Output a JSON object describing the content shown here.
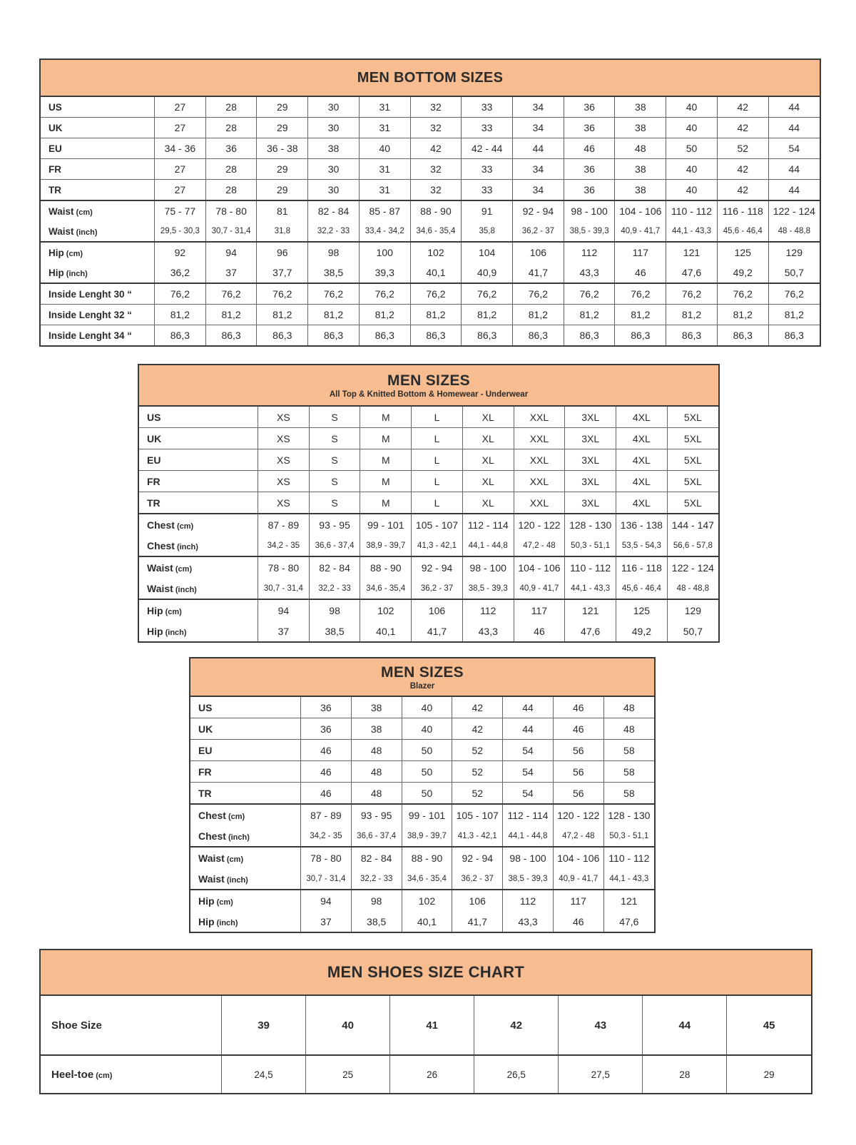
{
  "colors": {
    "header_bg": "#F7BD90",
    "line": "#666666",
    "line_dark": "#3a3a3a",
    "text": "#2b2b2b"
  },
  "tables": {
    "men_bottom_sizes": {
      "title": "MEN BOTTOM SIZES",
      "rows": [
        {
          "label": "US",
          "border": "normal",
          "values": [
            "27",
            "28",
            "29",
            "30",
            "31",
            "32",
            "33",
            "34",
            "36",
            "38",
            "40",
            "42",
            "44"
          ]
        },
        {
          "label": "UK",
          "border": "normal",
          "values": [
            "27",
            "28",
            "29",
            "30",
            "31",
            "32",
            "33",
            "34",
            "36",
            "38",
            "40",
            "42",
            "44"
          ]
        },
        {
          "label": "EU",
          "border": "normal",
          "values": [
            "34 - 36",
            "36",
            "36 - 38",
            "38",
            "40",
            "42",
            "42 - 44",
            "44",
            "46",
            "48",
            "50",
            "52",
            "54"
          ]
        },
        {
          "label": "FR",
          "border": "normal",
          "values": [
            "27",
            "28",
            "29",
            "30",
            "31",
            "32",
            "33",
            "34",
            "36",
            "38",
            "40",
            "42",
            "44"
          ]
        },
        {
          "label": "TR",
          "border": "normal",
          "values": [
            "27",
            "28",
            "29",
            "30",
            "31",
            "32",
            "33",
            "34",
            "36",
            "38",
            "40",
            "42",
            "44"
          ]
        },
        {
          "label": "Waist",
          "unit": "(cm)",
          "border": "group",
          "values": [
            "75 - 77",
            "78 - 80",
            "81",
            "82 - 84",
            "85 - 87",
            "88 - 90",
            "91",
            "92 - 94",
            "98 - 100",
            "104 - 106",
            "110 - 112",
            "116 - 118",
            "122 - 124"
          ]
        },
        {
          "label": "Waist",
          "unit": "(inch)",
          "border": "joined",
          "style": "small",
          "values": [
            "29,5 - 30,3",
            "30,7 - 31,4",
            "31,8",
            "32,2 - 33",
            "33,4 - 34,2",
            "34,6 - 35,4",
            "35,8",
            "36,2 - 37",
            "38,5 - 39,3",
            "40,9 - 41,7",
            "44,1 - 43,3",
            "45,6 - 46,4",
            "48 - 48,8"
          ]
        },
        {
          "label": "Hip",
          "unit": "(cm)",
          "border": "group",
          "values": [
            "92",
            "94",
            "96",
            "98",
            "100",
            "102",
            "104",
            "106",
            "112",
            "117",
            "121",
            "125",
            "129"
          ]
        },
        {
          "label": "Hip",
          "unit": "(inch)",
          "border": "joined",
          "values": [
            "36,2",
            "37",
            "37,7",
            "38,5",
            "39,3",
            "40,1",
            "40,9",
            "41,7",
            "43,3",
            "46",
            "47,6",
            "49,2",
            "50,7"
          ]
        },
        {
          "label": "Inside Lenght 30 “",
          "border": "group",
          "values": [
            "76,2",
            "76,2",
            "76,2",
            "76,2",
            "76,2",
            "76,2",
            "76,2",
            "76,2",
            "76,2",
            "76,2",
            "76,2",
            "76,2",
            "76,2"
          ]
        },
        {
          "label": "Inside Lenght 32 “",
          "border": "normal",
          "values": [
            "81,2",
            "81,2",
            "81,2",
            "81,2",
            "81,2",
            "81,2",
            "81,2",
            "81,2",
            "81,2",
            "81,2",
            "81,2",
            "81,2",
            "81,2"
          ]
        },
        {
          "label": "Inside Lenght 34 “",
          "border": "normal",
          "values": [
            "86,3",
            "86,3",
            "86,3",
            "86,3",
            "86,3",
            "86,3",
            "86,3",
            "86,3",
            "86,3",
            "86,3",
            "86,3",
            "86,3",
            "86,3"
          ]
        }
      ]
    },
    "men_sizes_top": {
      "title": "MEN SIZES",
      "subtitle": "All Top & Knitted Bottom & Homewear - Underwear",
      "rows": [
        {
          "label": "US",
          "border": "normal",
          "values": [
            "XS",
            "S",
            "M",
            "L",
            "XL",
            "XXL",
            "3XL",
            "4XL",
            "5XL"
          ]
        },
        {
          "label": "UK",
          "border": "normal",
          "values": [
            "XS",
            "S",
            "M",
            "L",
            "XL",
            "XXL",
            "3XL",
            "4XL",
            "5XL"
          ]
        },
        {
          "label": "EU",
          "border": "normal",
          "values": [
            "XS",
            "S",
            "M",
            "L",
            "XL",
            "XXL",
            "3XL",
            "4XL",
            "5XL"
          ]
        },
        {
          "label": "FR",
          "border": "normal",
          "values": [
            "XS",
            "S",
            "M",
            "L",
            "XL",
            "XXL",
            "3XL",
            "4XL",
            "5XL"
          ]
        },
        {
          "label": "TR",
          "border": "normal",
          "values": [
            "XS",
            "S",
            "M",
            "L",
            "XL",
            "XXL",
            "3XL",
            "4XL",
            "5XL"
          ]
        },
        {
          "label": "Chest",
          "unit": "(cm)",
          "border": "group",
          "values": [
            "87 - 89",
            "93 - 95",
            "99 - 101",
            "105 - 107",
            "112 - 114",
            "120 - 122",
            "128 - 130",
            "136 - 138",
            "144 - 147"
          ]
        },
        {
          "label": "Chest",
          "unit": "(inch)",
          "border": "joined",
          "style": "small",
          "values": [
            "34,2 - 35",
            "36,6 - 37,4",
            "38,9 - 39,7",
            "41,3 - 42,1",
            "44,1 - 44,8",
            "47,2 - 48",
            "50,3 - 51,1",
            "53,5 - 54,3",
            "56,6 - 57,8"
          ]
        },
        {
          "label": "Waist",
          "unit": "(cm)",
          "border": "group",
          "values": [
            "78 - 80",
            "82 - 84",
            "88 - 90",
            "92 - 94",
            "98 - 100",
            "104 - 106",
            "110 - 112",
            "116 - 118",
            "122 - 124"
          ]
        },
        {
          "label": "Waist",
          "unit": "(inch)",
          "border": "joined",
          "style": "small",
          "values": [
            "30,7 - 31,4",
            "32,2 - 33",
            "34,6 - 35,4",
            "36,2 - 37",
            "38,5 - 39,3",
            "40,9 - 41,7",
            "44,1 - 43,3",
            "45,6 - 46,4",
            "48 - 48,8"
          ]
        },
        {
          "label": "Hip",
          "unit": "(cm)",
          "border": "group",
          "values": [
            "94",
            "98",
            "102",
            "106",
            "112",
            "117",
            "121",
            "125",
            "129"
          ]
        },
        {
          "label": "Hip",
          "unit": "(inch)",
          "border": "joined",
          "values": [
            "37",
            "38,5",
            "40,1",
            "41,7",
            "43,3",
            "46",
            "47,6",
            "49,2",
            "50,7"
          ]
        }
      ]
    },
    "men_sizes_blazer": {
      "title": "MEN SIZES",
      "subtitle": "Blazer",
      "rows": [
        {
          "label": "US",
          "border": "normal",
          "values": [
            "36",
            "38",
            "40",
            "42",
            "44",
            "46",
            "48"
          ]
        },
        {
          "label": "UK",
          "border": "normal",
          "values": [
            "36",
            "38",
            "40",
            "42",
            "44",
            "46",
            "48"
          ]
        },
        {
          "label": "EU",
          "border": "normal",
          "values": [
            "46",
            "48",
            "50",
            "52",
            "54",
            "56",
            "58"
          ]
        },
        {
          "label": "FR",
          "border": "normal",
          "values": [
            "46",
            "48",
            "50",
            "52",
            "54",
            "56",
            "58"
          ]
        },
        {
          "label": "TR",
          "border": "normal",
          "values": [
            "46",
            "48",
            "50",
            "52",
            "54",
            "56",
            "58"
          ]
        },
        {
          "label": "Chest",
          "unit": "(cm)",
          "border": "group",
          "values": [
            "87 - 89",
            "93 - 95",
            "99 - 101",
            "105 - 107",
            "112 - 114",
            "120 - 122",
            "128 - 130"
          ]
        },
        {
          "label": "Chest",
          "unit": "(inch)",
          "border": "joined",
          "style": "small",
          "values": [
            "34,2 - 35",
            "36,6 - 37,4",
            "38,9 - 39,7",
            "41,3 - 42,1",
            "44,1 - 44,8",
            "47,2 - 48",
            "50,3 - 51,1"
          ]
        },
        {
          "label": "Waist",
          "unit": "(cm)",
          "border": "group",
          "values": [
            "78 - 80",
            "82 - 84",
            "88 - 90",
            "92 - 94",
            "98 - 100",
            "104 - 106",
            "110 - 112"
          ]
        },
        {
          "label": "Waist",
          "unit": "(inch)",
          "border": "joined",
          "style": "small",
          "values": [
            "30,7 - 31,4",
            "32,2 - 33",
            "34,6 - 35,4",
            "36,2 - 37",
            "38,5 - 39,3",
            "40,9 - 41,7",
            "44,1 - 43,3"
          ]
        },
        {
          "label": "Hip",
          "unit": "(cm)",
          "border": "group",
          "values": [
            "94",
            "98",
            "102",
            "106",
            "112",
            "117",
            "121"
          ]
        },
        {
          "label": "Hip",
          "unit": "(inch)",
          "border": "joined",
          "values": [
            "37",
            "38,5",
            "40,1",
            "41,7",
            "43,3",
            "46",
            "47,6"
          ]
        }
      ]
    },
    "men_shoes": {
      "title": "MEN SHOES SIZE CHART",
      "rows": [
        {
          "label": "Shoe Size",
          "border": "normal",
          "style": "boldvals",
          "values": [
            "39",
            "40",
            "41",
            "42",
            "43",
            "44",
            "45"
          ]
        },
        {
          "label": "Heel-toe",
          "unit": "(cm)",
          "border": "group",
          "values": [
            "24,5",
            "25",
            "26",
            "26,5",
            "27,5",
            "28",
            "29"
          ]
        }
      ]
    }
  }
}
